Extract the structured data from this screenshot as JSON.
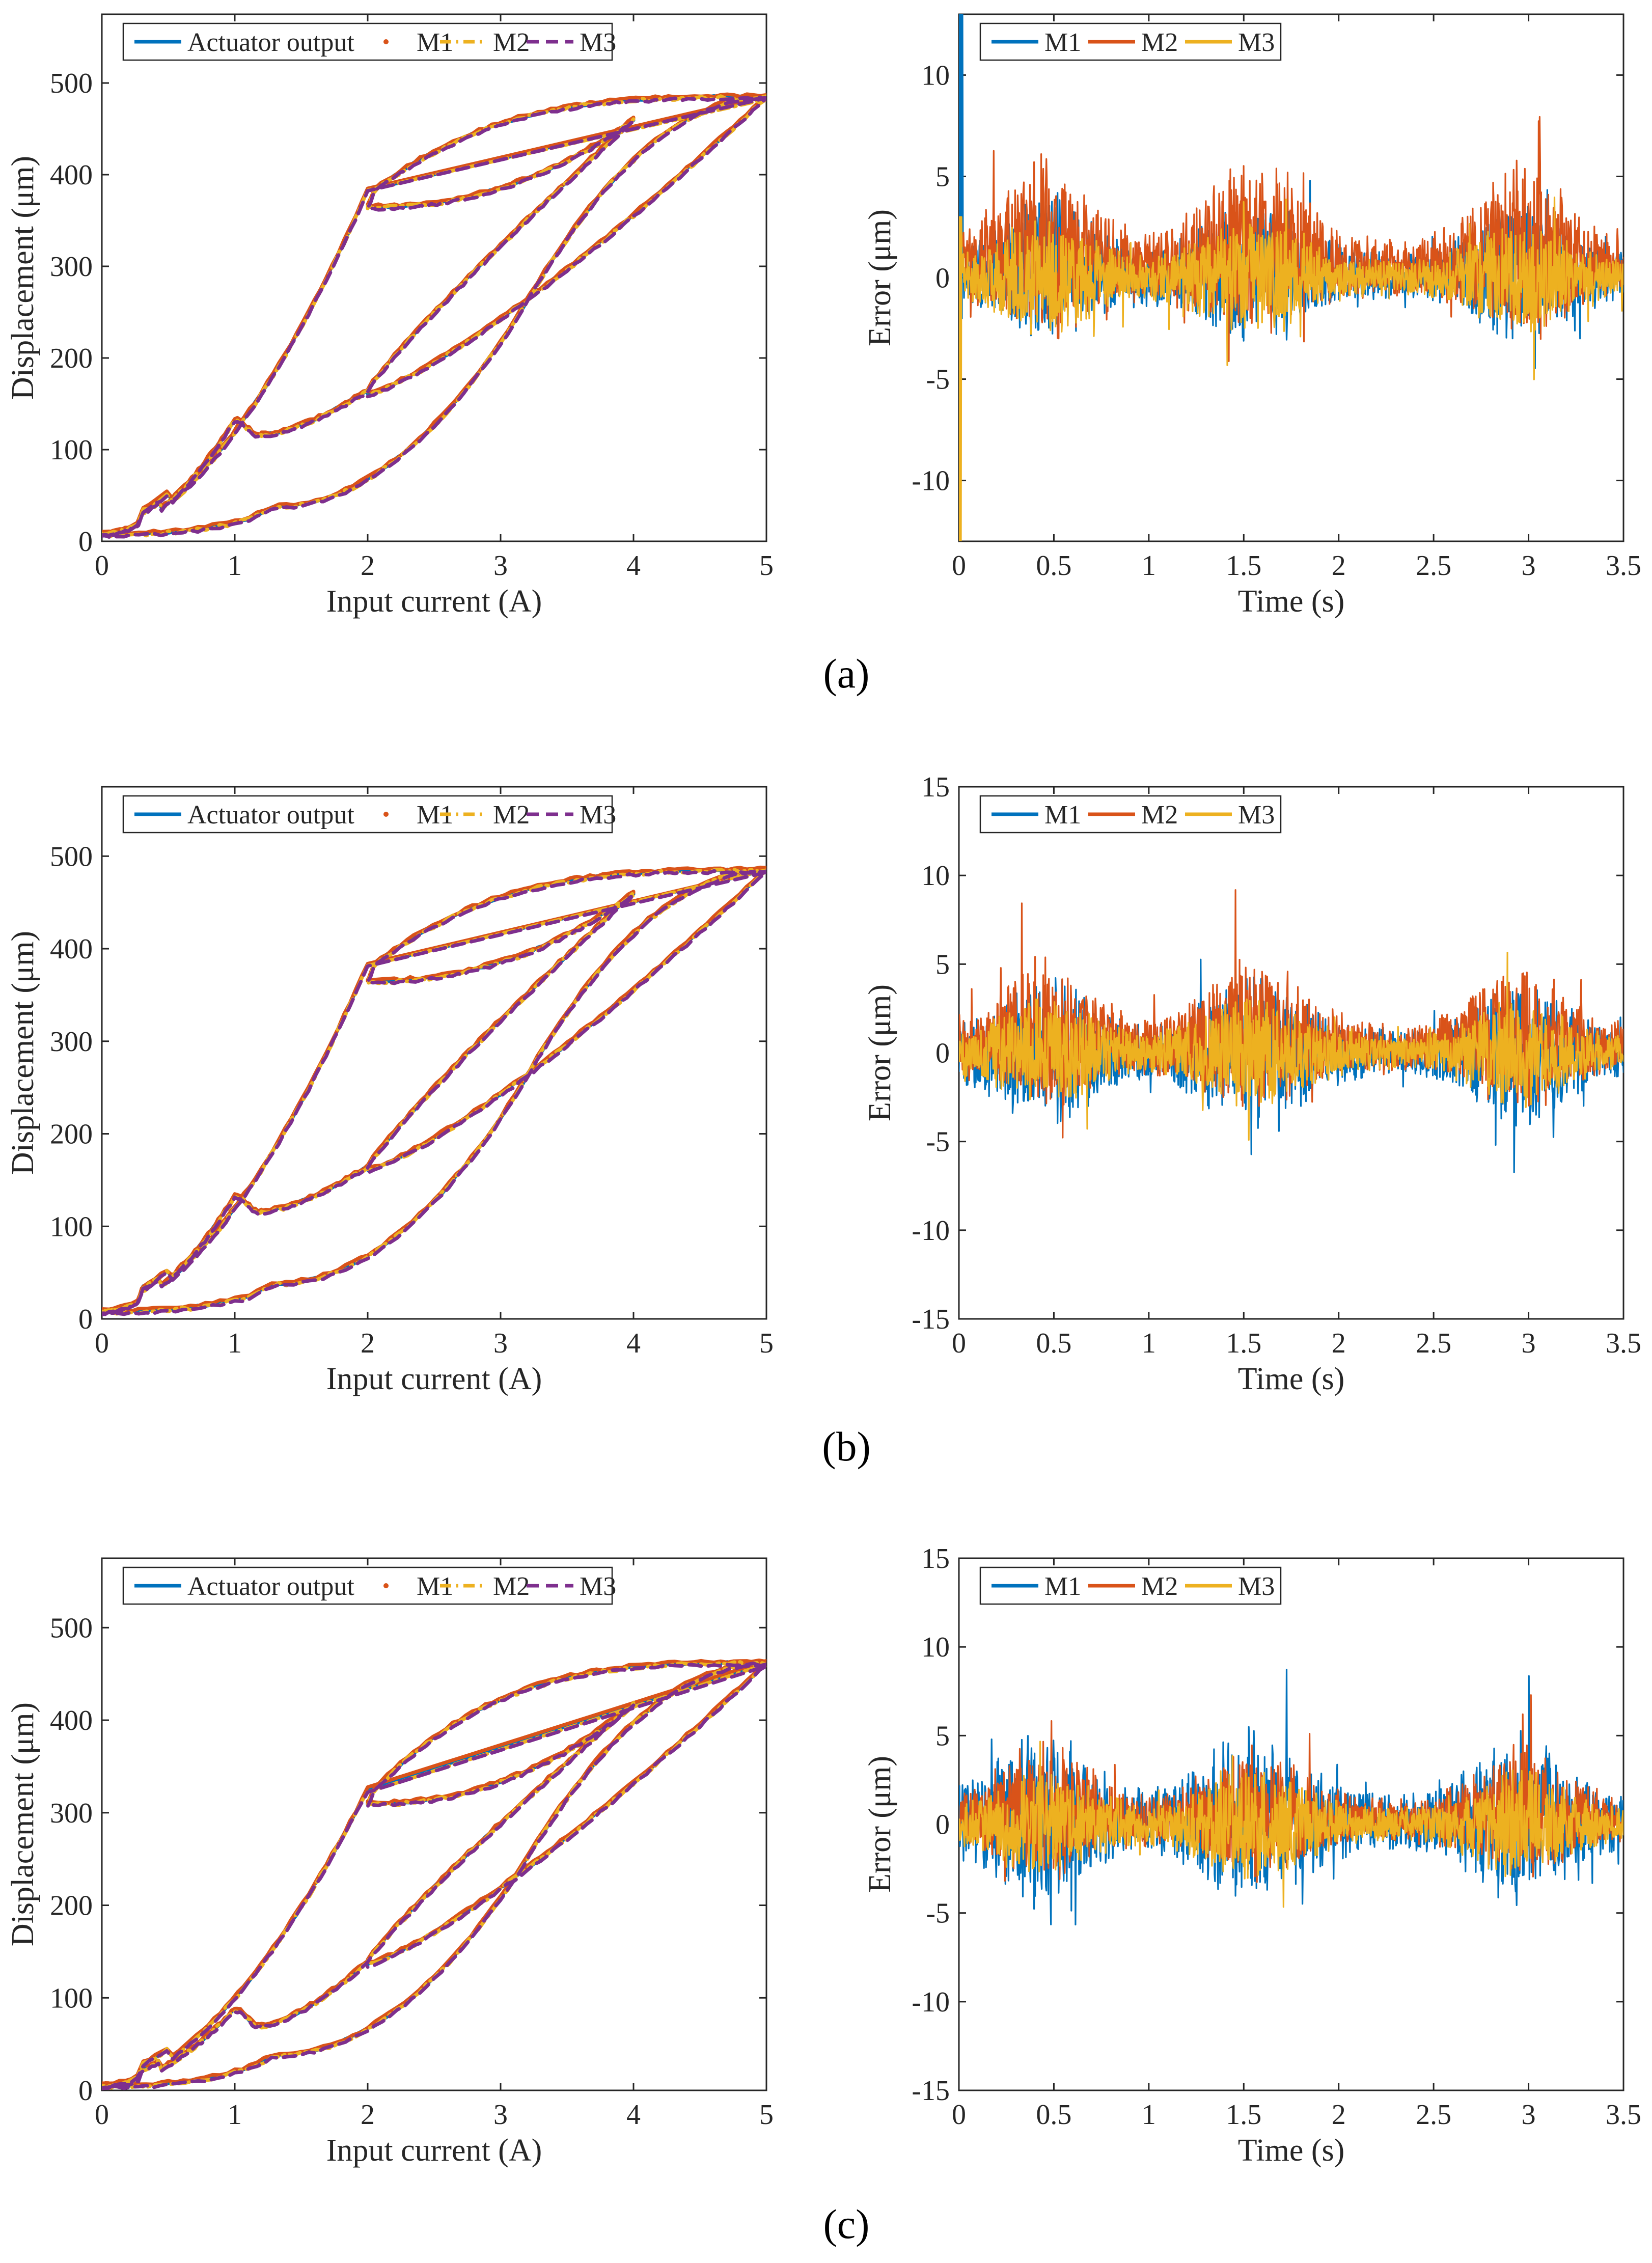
{
  "colors": {
    "actuator": "#0072BD",
    "m1": "#D95319",
    "m2": "#EDB120",
    "m3": "#7E2F8E",
    "err_m1": "#0072BD",
    "err_m2": "#D95319",
    "err_m3": "#EDB120"
  },
  "chart_data": [
    {
      "id": "a-left",
      "type": "line",
      "caption": "(a)",
      "xlabel": "Input current (A)",
      "ylabel": "Displacement (μm)",
      "xlim": [
        0,
        5
      ],
      "ylim": [
        0,
        575
      ],
      "xticks": [
        0,
        1,
        2,
        3,
        4,
        5
      ],
      "yticks": [
        0,
        100,
        200,
        300,
        400,
        500
      ],
      "legend": [
        "Actuator output",
        "M1",
        "M2",
        "M3"
      ],
      "hysteresis": {
        "ymax": 485,
        "y0": 8,
        "s1": 133,
        "v1": 116,
        "u1": 383,
        "v2": 365,
        "vmid": 460
      }
    },
    {
      "id": "a-right",
      "type": "line",
      "caption": "",
      "xlabel": "Time (s)",
      "ylabel": "Error (μm)",
      "xlim": [
        0,
        3.5
      ],
      "ylim": [
        -13,
        13
      ],
      "xticks": [
        0,
        0.5,
        1,
        1.5,
        2,
        2.5,
        3,
        3.5
      ],
      "yticks": [
        -10,
        -5,
        0,
        5,
        10
      ],
      "legend": [
        "M1",
        "M2",
        "M3"
      ],
      "error": {
        "amp": [
          3.0,
          3.6,
          2.4
        ],
        "bias": [
          0.4,
          1.6,
          0.0
        ],
        "startSpike": 13,
        "seed": 11
      }
    },
    {
      "id": "b-left",
      "type": "line",
      "caption": "(b)",
      "xlabel": "Input current (A)",
      "ylabel": "Displacement (μm)",
      "xlim": [
        0,
        5
      ],
      "ylim": [
        0,
        575
      ],
      "xticks": [
        0,
        1,
        2,
        3,
        4,
        5
      ],
      "yticks": [
        0,
        100,
        200,
        300,
        400,
        500
      ],
      "legend": [
        "Actuator output",
        "M1",
        "M2",
        "M3"
      ],
      "hysteresis": {
        "ymax": 485,
        "y0": 8,
        "s1": 133,
        "v1": 116,
        "u1": 383,
        "v2": 365,
        "vmid": 460
      }
    },
    {
      "id": "b-right",
      "type": "line",
      "caption": "",
      "xlabel": "Time (s)",
      "ylabel": "Error (μm)",
      "xlim": [
        0,
        3.5
      ],
      "ylim": [
        -15,
        15
      ],
      "xticks": [
        0,
        0.5,
        1,
        1.5,
        2,
        2.5,
        3,
        3.5
      ],
      "yticks": [
        -15,
        -10,
        -5,
        0,
        5,
        10,
        15
      ],
      "legend": [
        "M1",
        "M2",
        "M3"
      ],
      "error": {
        "amp": [
          3.6,
          3.4,
          2.6
        ],
        "bias": [
          0.0,
          1.2,
          0.0
        ],
        "startSpike": 0,
        "seed": 23
      }
    },
    {
      "id": "c-left",
      "type": "line",
      "caption": "(c)",
      "xlabel": "Input current (A)",
      "ylabel": "Displacement (μm)",
      "xlim": [
        0,
        5
      ],
      "ylim": [
        0,
        575
      ],
      "xticks": [
        0,
        1,
        2,
        3,
        4,
        5
      ],
      "yticks": [
        0,
        100,
        200,
        300,
        400,
        500
      ],
      "legend": [
        "Actuator output",
        "M1",
        "M2",
        "M3"
      ],
      "hysteresis": {
        "ymax": 462,
        "y0": 5,
        "s1": 88,
        "v1": 70,
        "u1": 325,
        "v2": 310,
        "vmid": 418
      }
    },
    {
      "id": "c-right",
      "type": "line",
      "caption": "",
      "xlabel": "Time (s)",
      "ylabel": "Error (μm)",
      "xlim": [
        0,
        3.5
      ],
      "ylim": [
        -15,
        15
      ],
      "xticks": [
        0,
        0.5,
        1,
        1.5,
        2,
        2.5,
        3,
        3.5
      ],
      "yticks": [
        -15,
        -10,
        -5,
        0,
        5,
        10,
        15
      ],
      "legend": [
        "M1",
        "M2",
        "M3"
      ],
      "error": {
        "amp": [
          4.2,
          3.2,
          2.6
        ],
        "bias": [
          0.4,
          0.8,
          0.0
        ],
        "startSpike": 0,
        "seed": 37
      }
    }
  ]
}
